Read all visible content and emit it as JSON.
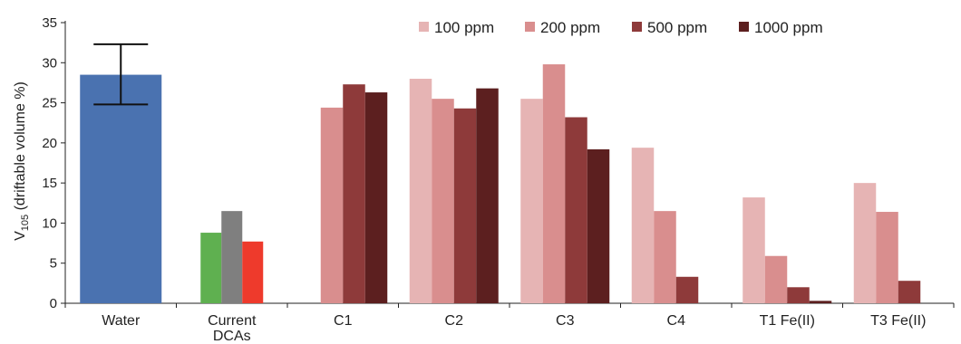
{
  "chart_data": {
    "type": "bar",
    "ylabel": {
      "prefix": "V",
      "subscript": "105",
      "suffix": " (driftable volume %)"
    },
    "ylim": [
      0,
      35
    ],
    "yticks": [
      0,
      5,
      10,
      15,
      20,
      25,
      30,
      35
    ],
    "categories": [
      "Water",
      "Current DCAs",
      "C1",
      "C2",
      "C3",
      "C4",
      "T1 Fe(II)",
      "T3 Fe(II)"
    ],
    "category_lines": [
      [
        "Water"
      ],
      [
        "Current",
        "DCAs"
      ],
      [
        "C1"
      ],
      [
        "C2"
      ],
      [
        "C3"
      ],
      [
        "C4"
      ],
      [
        "T1 Fe(II)"
      ],
      [
        "T3 Fe(II)"
      ]
    ],
    "water": {
      "value": 28.5,
      "error_low": 24.8,
      "error_high": 32.3,
      "color": "#4a72b0"
    },
    "current_dcas": [
      {
        "value": 8.8,
        "color": "#5fb050"
      },
      {
        "value": 11.5,
        "color": "#7f7f7f"
      },
      {
        "value": 7.7,
        "color": "#ee3a2c"
      }
    ],
    "series": [
      {
        "name": "100 ppm",
        "color": "#e6b4b4",
        "values": [
          null,
          null,
          0,
          28.0,
          25.5,
          19.4,
          13.2,
          15.0
        ]
      },
      {
        "name": "200 ppm",
        "color": "#d98e8e",
        "values": [
          null,
          null,
          24.4,
          25.5,
          29.8,
          11.5,
          5.9,
          11.4
        ]
      },
      {
        "name": "500 ppm",
        "color": "#8e3a3a",
        "values": [
          null,
          null,
          27.3,
          24.3,
          23.2,
          3.3,
          2.0,
          2.8
        ]
      },
      {
        "name": "1000 ppm",
        "color": "#5c1f1f",
        "values": [
          null,
          null,
          26.3,
          26.8,
          19.2,
          0,
          0.3,
          0
        ]
      }
    ],
    "legend_position": "top-right",
    "grid": false
  }
}
